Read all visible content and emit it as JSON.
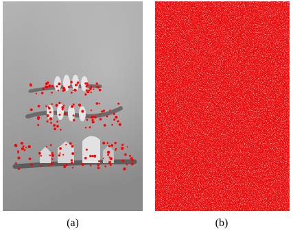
{
  "figure": {
    "panels": [
      {
        "caption": "(a)"
      },
      {
        "caption": "(b)"
      }
    ]
  }
}
